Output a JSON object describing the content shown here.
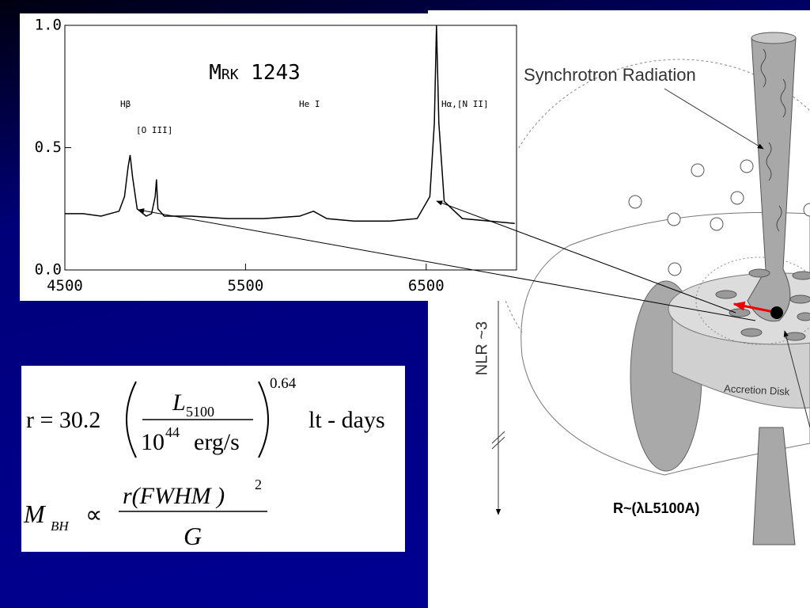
{
  "chart_data": {
    "type": "line",
    "title": "Mrk 1243",
    "annotations": [
      "Hβ",
      "[O III]",
      "He I",
      "Hα,[N II]"
    ],
    "x": [
      4500,
      4600,
      4700,
      4800,
      4830,
      4850,
      4861,
      4875,
      4900,
      4950,
      4980,
      5000,
      5007,
      5015,
      5050,
      5200,
      5400,
      5600,
      5800,
      5876,
      5950,
      6100,
      6300,
      6450,
      6520,
      6545,
      6557,
      6570,
      6600,
      6700,
      6850,
      6990
    ],
    "values": [
      0.23,
      0.23,
      0.22,
      0.24,
      0.3,
      0.42,
      0.47,
      0.38,
      0.25,
      0.22,
      0.23,
      0.3,
      0.37,
      0.25,
      0.22,
      0.22,
      0.21,
      0.21,
      0.22,
      0.24,
      0.21,
      0.2,
      0.2,
      0.21,
      0.3,
      0.6,
      1.0,
      0.6,
      0.28,
      0.21,
      0.2,
      0.19
    ],
    "color": "#000000",
    "xlim": [
      4500,
      7000
    ],
    "xticks": [
      4500,
      5500,
      6500
    ],
    "ylim": [
      0,
      1
    ],
    "yticks": [
      {
        "value": 0,
        "label": "0.0"
      },
      {
        "value": 0.5,
        "label": "0.5"
      },
      {
        "value": 1,
        "label": "1.0"
      }
    ]
  },
  "formula": {
    "r_lhs": "r = 30.2",
    "L": "L",
    "L_sub": "5100",
    "ten": "10",
    "ten_exp": "44",
    "unit": "erg/s",
    "power": "0.64",
    "days": "lt - days",
    "M": "M",
    "M_sub": "BH",
    "prop": "∝",
    "num": "r(FWHM )",
    "num_exp": "2",
    "den": "G"
  },
  "diagram": {
    "labels": [
      "Synchrotron Radiation",
      "NLR ~3",
      "Accretion Disk",
      "R~(λL5100A)"
    ]
  }
}
